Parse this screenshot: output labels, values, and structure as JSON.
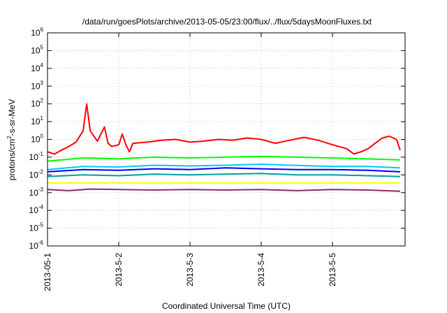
{
  "chart_data": {
    "type": "line",
    "title": "/data/run/goesPlots/archive/2013-05-05/23:00/flux/../flux/5daysMoonFluxes.txt",
    "xlabel": "Coordinated Universal Time (UTC)",
    "ylabel": {
      "prefix": "protons/cm",
      "exponent": "2",
      "suffix": "-s-sr-MeV"
    },
    "x_ticks": [
      "2013-05-1",
      "2013-5-2",
      "2013-5-3",
      "2013-5-4",
      "2013-5-5"
    ],
    "x_range_days": [
      0,
      4.95
    ],
    "y_scale": "log",
    "y_ticks": [
      {
        "base": "10",
        "exp": "6"
      },
      {
        "base": "10",
        "exp": "5"
      },
      {
        "base": "10",
        "exp": "4"
      },
      {
        "base": "10",
        "exp": "3"
      },
      {
        "base": "10",
        "exp": "2"
      },
      {
        "base": "10",
        "exp": "1"
      },
      {
        "base": "10",
        "exp": "0"
      },
      {
        "base": "10",
        "exp": "-1"
      },
      {
        "base": "10",
        "exp": "-2"
      },
      {
        "base": "10",
        "exp": "-3"
      },
      {
        "base": "10",
        "exp": "-4"
      },
      {
        "base": "10",
        "exp": "-5"
      },
      {
        "base": "10",
        "exp": "-6"
      }
    ],
    "y_range": [
      1e-06,
      1000000.0
    ],
    "grid": true,
    "legend": "none",
    "series": [
      {
        "color": "#ff0000",
        "x": [
          0,
          0.1,
          0.2,
          0.3,
          0.4,
          0.5,
          0.55,
          0.6,
          0.7,
          0.8,
          0.85,
          0.9,
          1.0,
          1.05,
          1.1,
          1.15,
          1.2,
          1.4,
          1.6,
          1.8,
          2.0,
          2.2,
          2.4,
          2.6,
          2.8,
          3.0,
          3.2,
          3.4,
          3.6,
          3.8,
          4.0,
          4.2,
          4.3,
          4.4,
          4.5,
          4.6,
          4.7,
          4.8,
          4.9,
          4.95
        ],
        "y": [
          0.2,
          0.15,
          0.25,
          0.4,
          0.7,
          3,
          100,
          3,
          0.8,
          5,
          0.6,
          0.4,
          0.5,
          2,
          0.5,
          0.2,
          0.6,
          0.7,
          0.9,
          1.0,
          0.7,
          0.8,
          1.0,
          0.9,
          1.2,
          1.0,
          0.6,
          0.9,
          1.3,
          0.9,
          0.5,
          0.3,
          0.15,
          0.2,
          0.3,
          0.6,
          1.2,
          1.5,
          1.0,
          0.25
        ]
      },
      {
        "color": "#00ff00",
        "x": [
          0,
          0.5,
          1.0,
          1.5,
          2.0,
          2.5,
          3.0,
          3.5,
          4.0,
          4.5,
          4.95
        ],
        "y": [
          0.06,
          0.09,
          0.08,
          0.1,
          0.09,
          0.1,
          0.11,
          0.1,
          0.09,
          0.08,
          0.07
        ]
      },
      {
        "color": "#00c8ff",
        "x": [
          0,
          0.5,
          1.0,
          1.5,
          2.0,
          2.5,
          3.0,
          3.5,
          4.0,
          4.5,
          4.95
        ],
        "y": [
          0.02,
          0.03,
          0.028,
          0.035,
          0.032,
          0.035,
          0.04,
          0.034,
          0.03,
          0.03,
          0.025
        ]
      },
      {
        "color": "#0000ff",
        "x": [
          0,
          0.5,
          1.0,
          1.5,
          2.0,
          2.5,
          3.0,
          3.5,
          4.0,
          4.5,
          4.95
        ],
        "y": [
          0.015,
          0.02,
          0.018,
          0.022,
          0.02,
          0.025,
          0.022,
          0.02,
          0.02,
          0.018,
          0.015
        ]
      },
      {
        "color": "#00a0a0",
        "x": [
          0,
          0.5,
          1.0,
          1.5,
          2.0,
          2.5,
          3.0,
          3.5,
          4.0,
          4.5,
          4.95
        ],
        "y": [
          0.008,
          0.01,
          0.009,
          0.011,
          0.01,
          0.011,
          0.012,
          0.01,
          0.01,
          0.009,
          0.008
        ]
      },
      {
        "color": "#ffff00",
        "x": [
          0,
          0.5,
          1.0,
          1.5,
          2.0,
          2.5,
          3.0,
          3.5,
          4.0,
          4.5,
          4.95
        ],
        "y": [
          0.0035,
          0.0035,
          0.0035,
          0.0035,
          0.0035,
          0.0035,
          0.0035,
          0.0035,
          0.0035,
          0.0035,
          0.0035
        ]
      },
      {
        "color": "#8b2a6a",
        "x": [
          0,
          0.3,
          0.6,
          1.0,
          1.5,
          2.0,
          2.5,
          3.0,
          3.5,
          4.0,
          4.5,
          4.95
        ],
        "y": [
          0.0015,
          0.0013,
          0.0016,
          0.0015,
          0.0014,
          0.0015,
          0.0014,
          0.0015,
          0.0013,
          0.0015,
          0.0014,
          0.0012
        ]
      }
    ]
  }
}
